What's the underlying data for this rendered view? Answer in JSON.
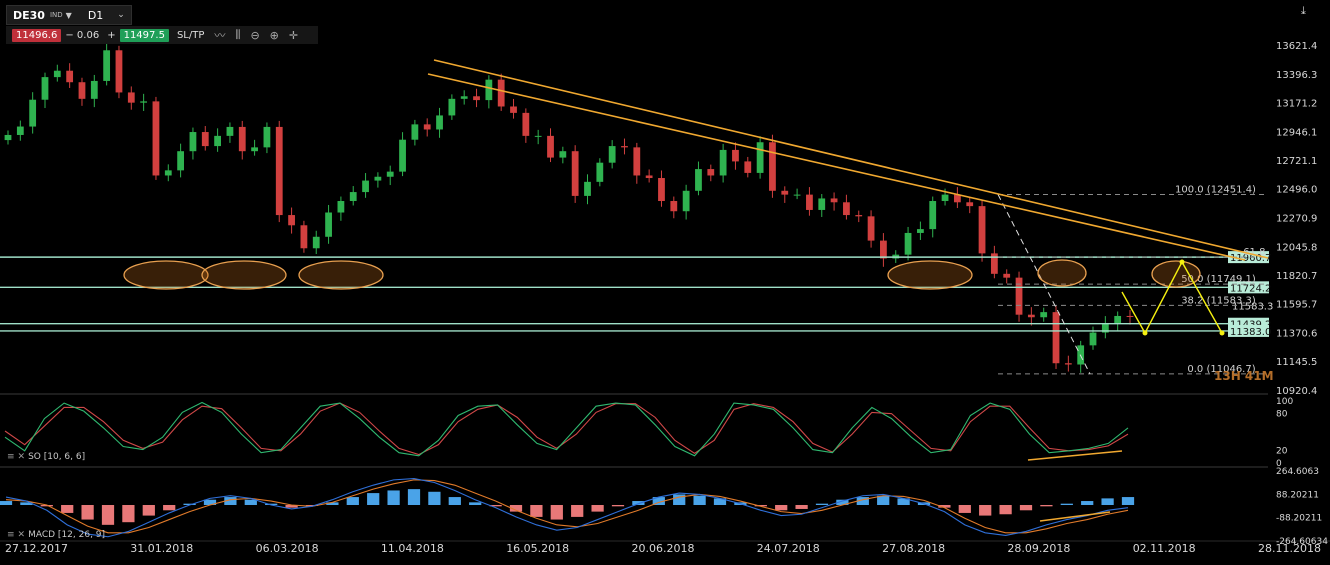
{
  "toolbar": {
    "symbol": "DE30",
    "exchange": "IND",
    "timeframe": "D1",
    "bid": "11496.6",
    "spread": "− 0.06",
    "plus": "+",
    "ask": "11497.5",
    "sl_tp": "SL/TP"
  },
  "countdown": "13H 41M",
  "so_label": "SO [10, 6, 6]",
  "macd_label": "MACD [12, 26, 9]",
  "chart_data": {
    "type": "candlestick",
    "price_axis": {
      "ticks": [
        "13621.4",
        "13396.3",
        "13171.2",
        "12946.1",
        "12721.1",
        "12496.0",
        "12270.9",
        "12045.8",
        "11820.7",
        "11595.7",
        "11370.6",
        "11145.5",
        "10920.4"
      ],
      "range": [
        10920.4,
        13621.4
      ]
    },
    "time_axis": [
      "27.12.2017",
      "31.01.2018",
      "06.03.2018",
      "11.04.2018",
      "16.05.2018",
      "20.06.2018",
      "24.07.2018",
      "27.08.2018",
      "28.09.2018",
      "02.11.2018",
      "28.11.2018"
    ],
    "close_series": [
      12917,
      12983,
      13193,
      13370,
      13420,
      13330,
      13200,
      13340,
      13580,
      13250,
      13170,
      13180,
      12600,
      12640,
      12790,
      12940,
      12830,
      12910,
      12980,
      12790,
      12820,
      12980,
      12290,
      12210,
      12030,
      12120,
      12310,
      12400,
      12470,
      12560,
      12590,
      12630,
      12880,
      13000,
      12960,
      13070,
      13200,
      13220,
      13190,
      13350,
      13140,
      13090,
      12910,
      12910,
      12740,
      12790,
      12440,
      12550,
      12700,
      12830,
      12820,
      12600,
      12580,
      12400,
      12320,
      12480,
      12650,
      12600,
      12800,
      12710,
      12620,
      12860,
      12480,
      12450,
      12450,
      12330,
      12420,
      12390,
      12290,
      12280,
      12090,
      11950,
      11980,
      12150,
      12180,
      12400,
      12450,
      12390,
      12360,
      11990,
      11830,
      11800,
      11510,
      11490,
      11530,
      11130,
      11120,
      11270,
      11370,
      11440,
      11500,
      11497
    ],
    "horizontal_levels": [
      11960.7,
      11724.2,
      11439.2,
      11383.0
    ],
    "price_labels": [
      "11960.7",
      "11724.2",
      "11583.3",
      "11439.2",
      "11383.0"
    ],
    "fibonacci": [
      {
        "label": "100.0 (12451.4)",
        "value": 12451.4
      },
      {
        "label": "61.8",
        "value": 11960.7
      },
      {
        "label": "50.0 (11749.1)",
        "value": 11749.1
      },
      {
        "label": "38.2 (11583.3)",
        "value": 11583.3
      },
      {
        "label": "0.0 (11046.7)",
        "value": 11046.7
      }
    ],
    "stochastic": {
      "name": "SO [10, 6, 6]",
      "ticks": [
        "100",
        "80",
        "20",
        "0"
      ],
      "k": [
        40,
        18,
        70,
        95,
        82,
        55,
        25,
        20,
        40,
        80,
        96,
        80,
        45,
        15,
        20,
        55,
        90,
        95,
        70,
        40,
        15,
        10,
        35,
        75,
        90,
        92,
        60,
        30,
        20,
        55,
        90,
        95,
        92,
        60,
        25,
        10,
        45,
        95,
        92,
        85,
        55,
        20,
        15,
        55,
        88,
        70,
        40,
        15,
        20,
        75,
        95,
        85,
        45,
        15,
        18,
        22,
        30,
        55
      ],
      "d": [
        50,
        28,
        58,
        88,
        88,
        65,
        35,
        22,
        32,
        68,
        90,
        86,
        55,
        22,
        18,
        45,
        82,
        95,
        80,
        50,
        22,
        12,
        28,
        65,
        85,
        92,
        72,
        40,
        22,
        45,
        80,
        94,
        94,
        72,
        35,
        14,
        35,
        85,
        94,
        88,
        65,
        30,
        16,
        45,
        80,
        78,
        50,
        22,
        18,
        65,
        90,
        90,
        55,
        22,
        18,
        20,
        26,
        45
      ]
    },
    "macd": {
      "name": "MACD [12, 26, 9]",
      "ticks": [
        "264.6063",
        "88.20211",
        "-88.20211",
        "-264.60634"
      ],
      "histogram": [
        30,
        20,
        -10,
        -60,
        -110,
        -150,
        -130,
        -80,
        -40,
        10,
        40,
        60,
        40,
        10,
        -20,
        -5,
        20,
        60,
        90,
        110,
        120,
        100,
        60,
        20,
        -10,
        -50,
        -90,
        -110,
        -90,
        -50,
        -10,
        30,
        60,
        80,
        70,
        50,
        20,
        -10,
        -40,
        -30,
        10,
        40,
        60,
        70,
        50,
        20,
        -20,
        -60,
        -80,
        -70,
        -40,
        -10,
        10,
        30,
        50,
        60
      ],
      "macd_line": [
        60,
        30,
        -40,
        -150,
        -220,
        -240,
        -200,
        -130,
        -60,
        0,
        50,
        70,
        50,
        0,
        -30,
        -10,
        40,
        100,
        150,
        190,
        200,
        170,
        110,
        40,
        -20,
        -90,
        -150,
        -190,
        -170,
        -110,
        -50,
        10,
        60,
        90,
        80,
        50,
        10,
        -40,
        -80,
        -70,
        -20,
        30,
        70,
        80,
        50,
        10,
        -50,
        -150,
        -210,
        -230,
        -200,
        -150,
        -110,
        -80,
        -40,
        -20
      ],
      "signal_line": [
        40,
        30,
        0,
        -80,
        -160,
        -210,
        -210,
        -170,
        -110,
        -50,
        0,
        40,
        50,
        30,
        0,
        -10,
        20,
        70,
        120,
        160,
        190,
        185,
        150,
        90,
        30,
        -40,
        -100,
        -150,
        -165,
        -140,
        -90,
        -40,
        20,
        60,
        80,
        65,
        30,
        -10,
        -50,
        -65,
        -40,
        0,
        40,
        70,
        65,
        35,
        -20,
        -100,
        -170,
        -210,
        -210,
        -180,
        -140,
        -110,
        -70,
        -40
      ]
    }
  },
  "colors": {
    "up": "#2fb350",
    "down": "#d2403f",
    "trendline": "#f0a830",
    "level": "#9fe0c8",
    "ellipse": "#e8a050",
    "arrow": "#f5f010",
    "stoch_k": "#2fb870",
    "stoch_d": "#d04848",
    "macd_line": "#2f6fd8",
    "signal_line": "#e07a2a",
    "hist_pos": "#4aa3e8",
    "hist_neg": "#e87878"
  }
}
